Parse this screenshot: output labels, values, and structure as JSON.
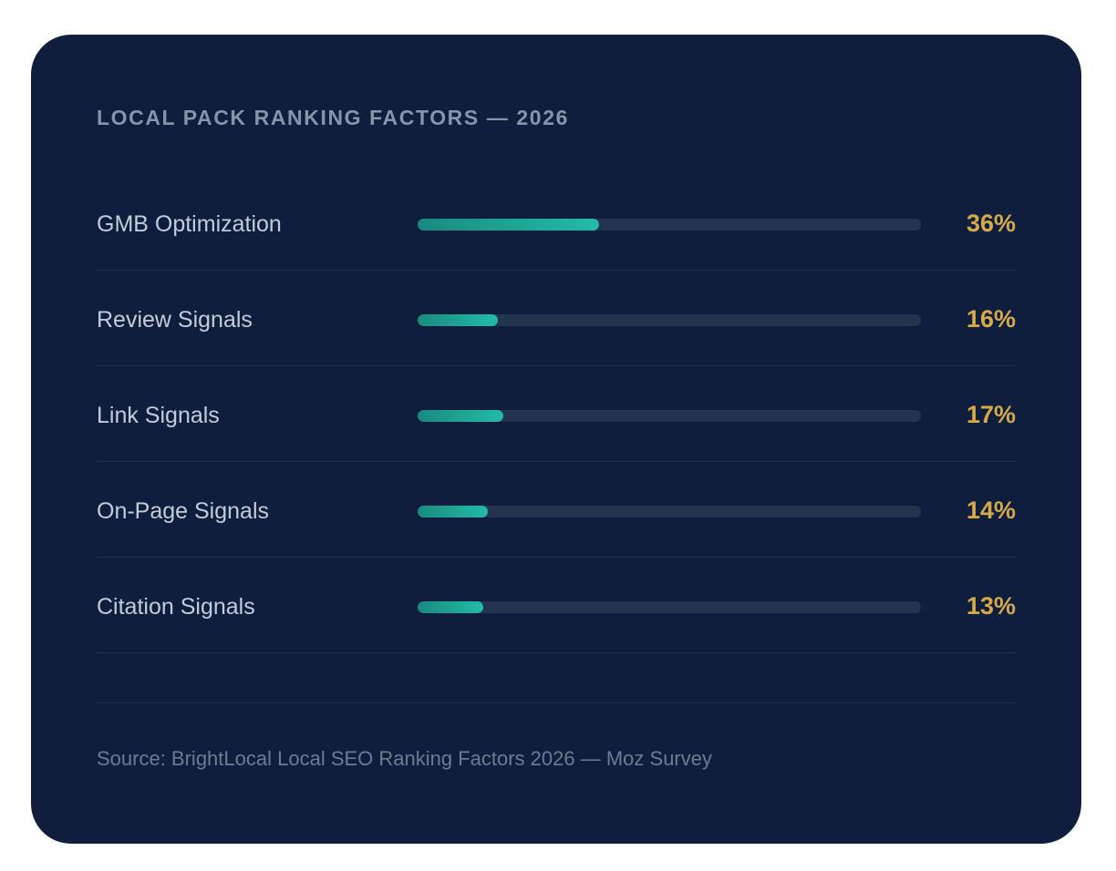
{
  "chart_data": {
    "type": "bar",
    "title": "LOCAL PACK RANKING FACTORS — 2026",
    "categories": [
      "GMB Optimization",
      "Review Signals",
      "Link Signals",
      "On-Page Signals",
      "Citation Signals"
    ],
    "values": [
      36,
      16,
      17,
      14,
      13
    ],
    "value_labels": [
      "36%",
      "16%",
      "17%",
      "14%",
      "13%"
    ],
    "unit": "%",
    "xlim": [
      0,
      100
    ],
    "orientation": "horizontal",
    "grid": false,
    "legend": "none",
    "source": "Source: BrightLocal Local SEO Ranking Factors 2026 — Moz Survey"
  },
  "colors": {
    "background": "#0e1e3c",
    "bar_fill": "#22bca6",
    "bar_track": "#24344f",
    "value_text": "#d6a94a",
    "label_text": "#c3cdd9",
    "title_text": "#8695a8"
  }
}
